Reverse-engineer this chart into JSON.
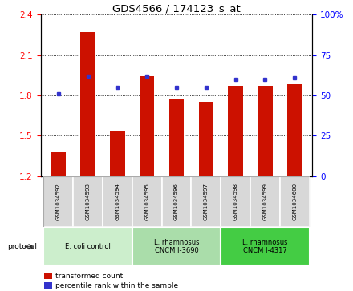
{
  "title": "GDS4566 / 174123_s_at",
  "samples": [
    "GSM1034592",
    "GSM1034593",
    "GSM1034594",
    "GSM1034595",
    "GSM1034596",
    "GSM1034597",
    "GSM1034598",
    "GSM1034599",
    "GSM1034600"
  ],
  "transformed_count": [
    1.38,
    2.27,
    1.54,
    1.94,
    1.77,
    1.75,
    1.87,
    1.87,
    1.88
  ],
  "percentile_rank": [
    51,
    62,
    55,
    62,
    55,
    55,
    60,
    60,
    61
  ],
  "ylim_left": [
    1.2,
    2.4
  ],
  "ylim_right": [
    0,
    100
  ],
  "yticks_left": [
    1.2,
    1.5,
    1.8,
    2.1,
    2.4
  ],
  "yticks_right": [
    0,
    25,
    50,
    75,
    100
  ],
  "bar_color": "#cc1100",
  "dot_color": "#3333cc",
  "groups": [
    {
      "label": "E. coli control",
      "indices": [
        0,
        1,
        2
      ],
      "color": "#cceecc"
    },
    {
      "label": "L. rhamnosus\nCNCM I-3690",
      "indices": [
        3,
        4,
        5
      ],
      "color": "#aaddaa"
    },
    {
      "label": "L. rhamnosus\nCNCM I-4317",
      "indices": [
        6,
        7,
        8
      ],
      "color": "#44cc44"
    }
  ],
  "protocol_label": "protocol",
  "legend_bar_label": "transformed count",
  "legend_dot_label": "percentile rank within the sample",
  "bg_color": "#ffffff",
  "panel_bg": "#d8d8d8",
  "panel_border": "#aaaaaa"
}
